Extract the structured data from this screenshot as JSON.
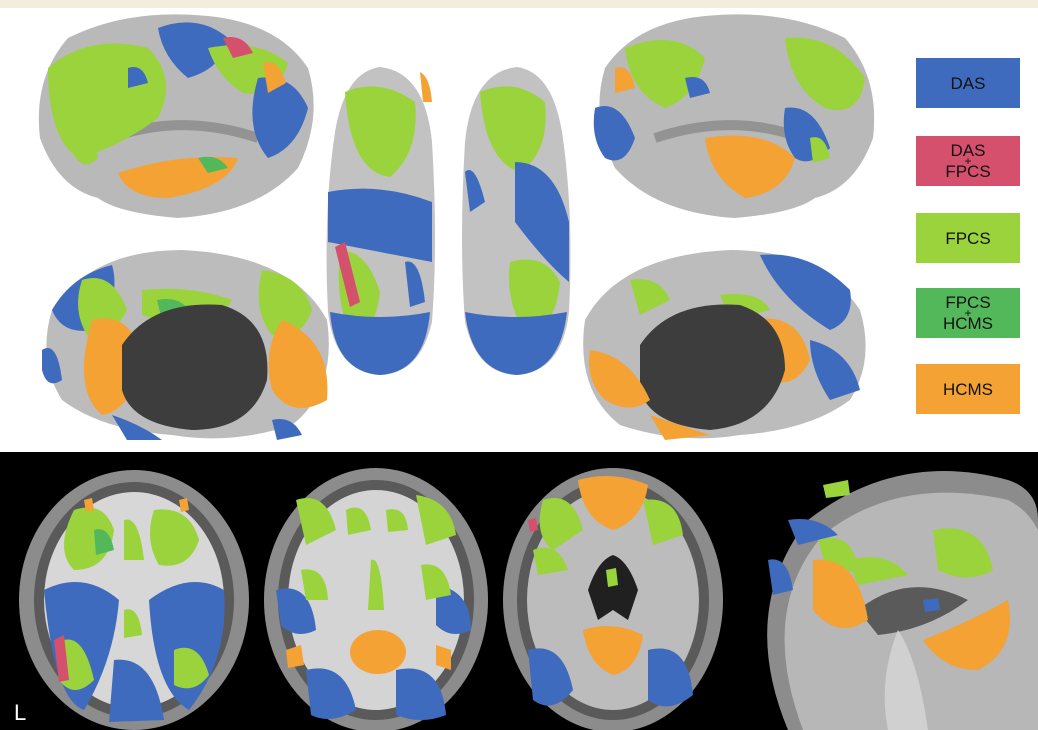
{
  "colors": {
    "DAS": "#3f6bbf",
    "DAS_FPCS": "#d5506c",
    "FPCS": "#9bd33c",
    "FPCS_HCMS": "#52b85a",
    "HCMS": "#f3a233",
    "cortex": "#bdbdbd",
    "medial_wall": "#3d3d3d"
  },
  "legend": [
    {
      "line1": "DAS",
      "plus": "",
      "line2": "",
      "color": "#3f6bbf"
    },
    {
      "line1": "DAS",
      "plus": "+",
      "line2": "FPCS",
      "color": "#d5506c"
    },
    {
      "line1": "FPCS",
      "plus": "",
      "line2": "",
      "color": "#9bd33c"
    },
    {
      "line1": "FPCS",
      "plus": "+",
      "line2": "HCMS",
      "color": "#52b85a"
    },
    {
      "line1": "HCMS",
      "plus": "",
      "line2": "",
      "color": "#f3a233"
    }
  ],
  "slice_label": "L"
}
